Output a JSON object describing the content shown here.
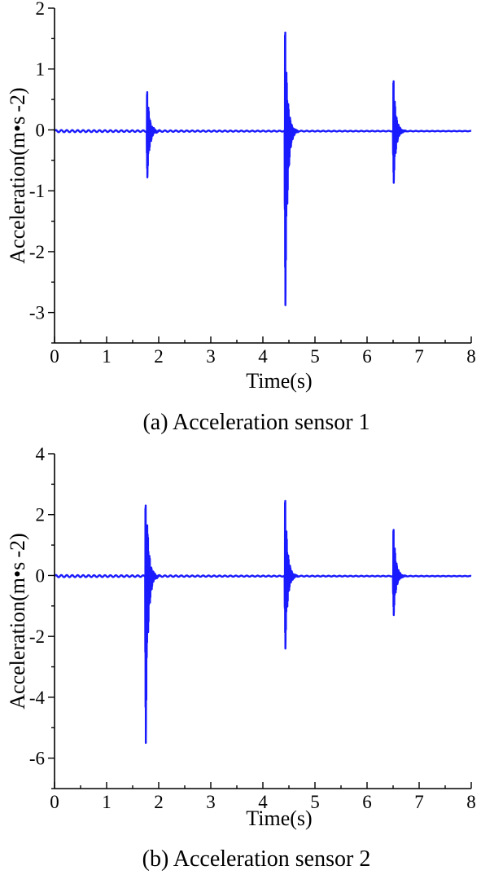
{
  "chart_data": [
    {
      "type": "line",
      "caption": "(a) Acceleration sensor 1",
      "xlabel": "Time(s)",
      "ylabel": "Acceleration(m•s -2)",
      "xlim": [
        0,
        8
      ],
      "ylim": [
        -3.5,
        2
      ],
      "xticks": [
        "0",
        "1",
        "2",
        "3",
        "4",
        "5",
        "6",
        "7",
        "8"
      ],
      "yticks": [
        "2",
        "1",
        "0",
        "-1",
        "-2",
        "-3"
      ],
      "series_color": "#1a1aff",
      "baseline": -0.02,
      "events": [
        {
          "t": 1.78,
          "max": 0.62,
          "min": -0.78
        },
        {
          "t": 4.43,
          "max": 1.6,
          "min": -2.88
        },
        {
          "t": 6.51,
          "max": 0.8,
          "min": -0.87
        }
      ]
    },
    {
      "type": "line",
      "caption": "(b) Acceleration sensor 2",
      "xlabel": "Time(s)",
      "ylabel": "Acceleration(m•s -2)",
      "xlim": [
        0,
        8
      ],
      "ylim": [
        -7,
        4
      ],
      "xticks": [
        "0",
        "1",
        "2",
        "3",
        "4",
        "5",
        "6",
        "7",
        "8"
      ],
      "yticks": [
        "4",
        "2",
        "0",
        "-2",
        "-4",
        "-6"
      ],
      "series_color": "#1a1aff",
      "baseline": -0.02,
      "events": [
        {
          "t": 1.75,
          "max": 2.3,
          "min": -5.5
        },
        {
          "t": 1.78,
          "max": 1.65,
          "min": -1.35
        },
        {
          "t": 4.43,
          "max": 2.45,
          "min": -2.4
        },
        {
          "t": 6.51,
          "max": 1.5,
          "min": -1.3
        }
      ]
    }
  ]
}
